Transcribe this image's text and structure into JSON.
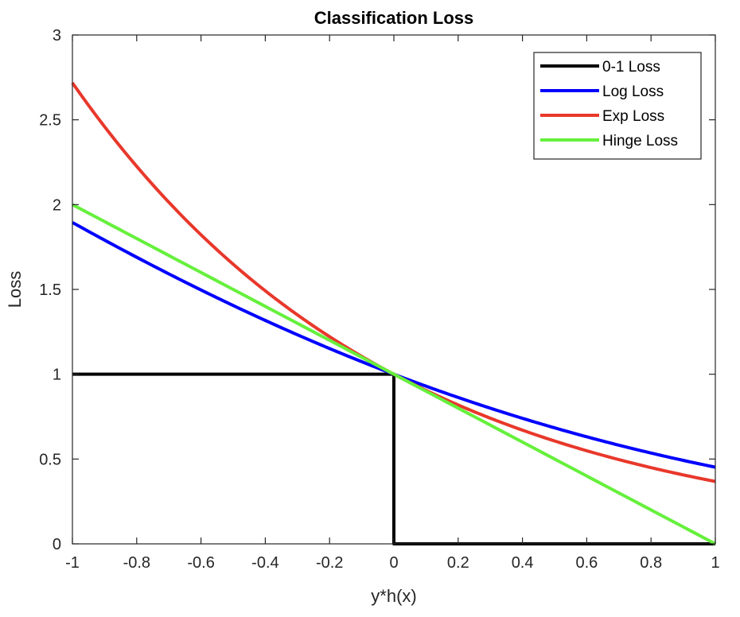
{
  "chart_data": {
    "type": "line",
    "title": "Classification Loss",
    "xlabel": "y*h(x)",
    "ylabel": "Loss",
    "xlim": [
      -1,
      1
    ],
    "ylim": [
      0,
      3
    ],
    "xticks": [
      -1,
      -0.8,
      -0.6,
      -0.4,
      -0.2,
      0,
      0.2,
      0.4,
      0.6,
      0.8,
      1
    ],
    "xtick_labels": [
      "-1",
      "-0.8",
      "-0.6",
      "-0.4",
      "-0.2",
      "0",
      "0.2",
      "0.4",
      "0.6",
      "0.8",
      "1"
    ],
    "yticks": [
      0,
      0.5,
      1,
      1.5,
      2,
      2.5,
      3
    ],
    "ytick_labels": [
      "0",
      "0.5",
      "1",
      "1.5",
      "2",
      "2.5",
      "3"
    ],
    "grid": false,
    "legend_position": "top-right",
    "x": [
      -1,
      -0.9,
      -0.8,
      -0.7,
      -0.6,
      -0.5,
      -0.4,
      -0.3,
      -0.2,
      -0.1,
      0,
      0.1,
      0.2,
      0.3,
      0.4,
      0.5,
      0.6,
      0.7,
      0.8,
      0.9,
      1
    ],
    "series": [
      {
        "name": "0-1 Loss",
        "color": "#000000",
        "points": [
          [
            -1,
            1
          ],
          [
            0,
            1
          ],
          [
            0,
            0
          ],
          [
            1,
            0
          ]
        ]
      },
      {
        "name": "Log Loss",
        "color": "#0000ff",
        "values": [
          2.127,
          1.988,
          1.853,
          1.722,
          1.596,
          1.474,
          1.358,
          1.246,
          1.139,
          1.037,
          0.941,
          0.85,
          0.765,
          0.686,
          0.612,
          0.544,
          0.48,
          0.423,
          0.37,
          0.322,
          0.279
        ]
      },
      {
        "name": "Exp Loss",
        "color": "#e8382b",
        "values": [
          2.718,
          2.46,
          2.226,
          2.014,
          1.822,
          1.649,
          1.492,
          1.35,
          1.221,
          1.105,
          1.0,
          0.905,
          0.819,
          0.741,
          0.67,
          0.607,
          0.549,
          0.497,
          0.449,
          0.407,
          0.368
        ]
      },
      {
        "name": "Hinge Loss",
        "color": "#66f03c",
        "values": [
          2.0,
          1.9,
          1.8,
          1.7,
          1.6,
          1.5,
          1.4,
          1.3,
          1.2,
          1.1,
          1.0,
          0.9,
          0.8,
          0.7,
          0.6,
          0.5,
          0.4,
          0.3,
          0.2,
          0.1,
          0.0
        ]
      }
    ]
  }
}
